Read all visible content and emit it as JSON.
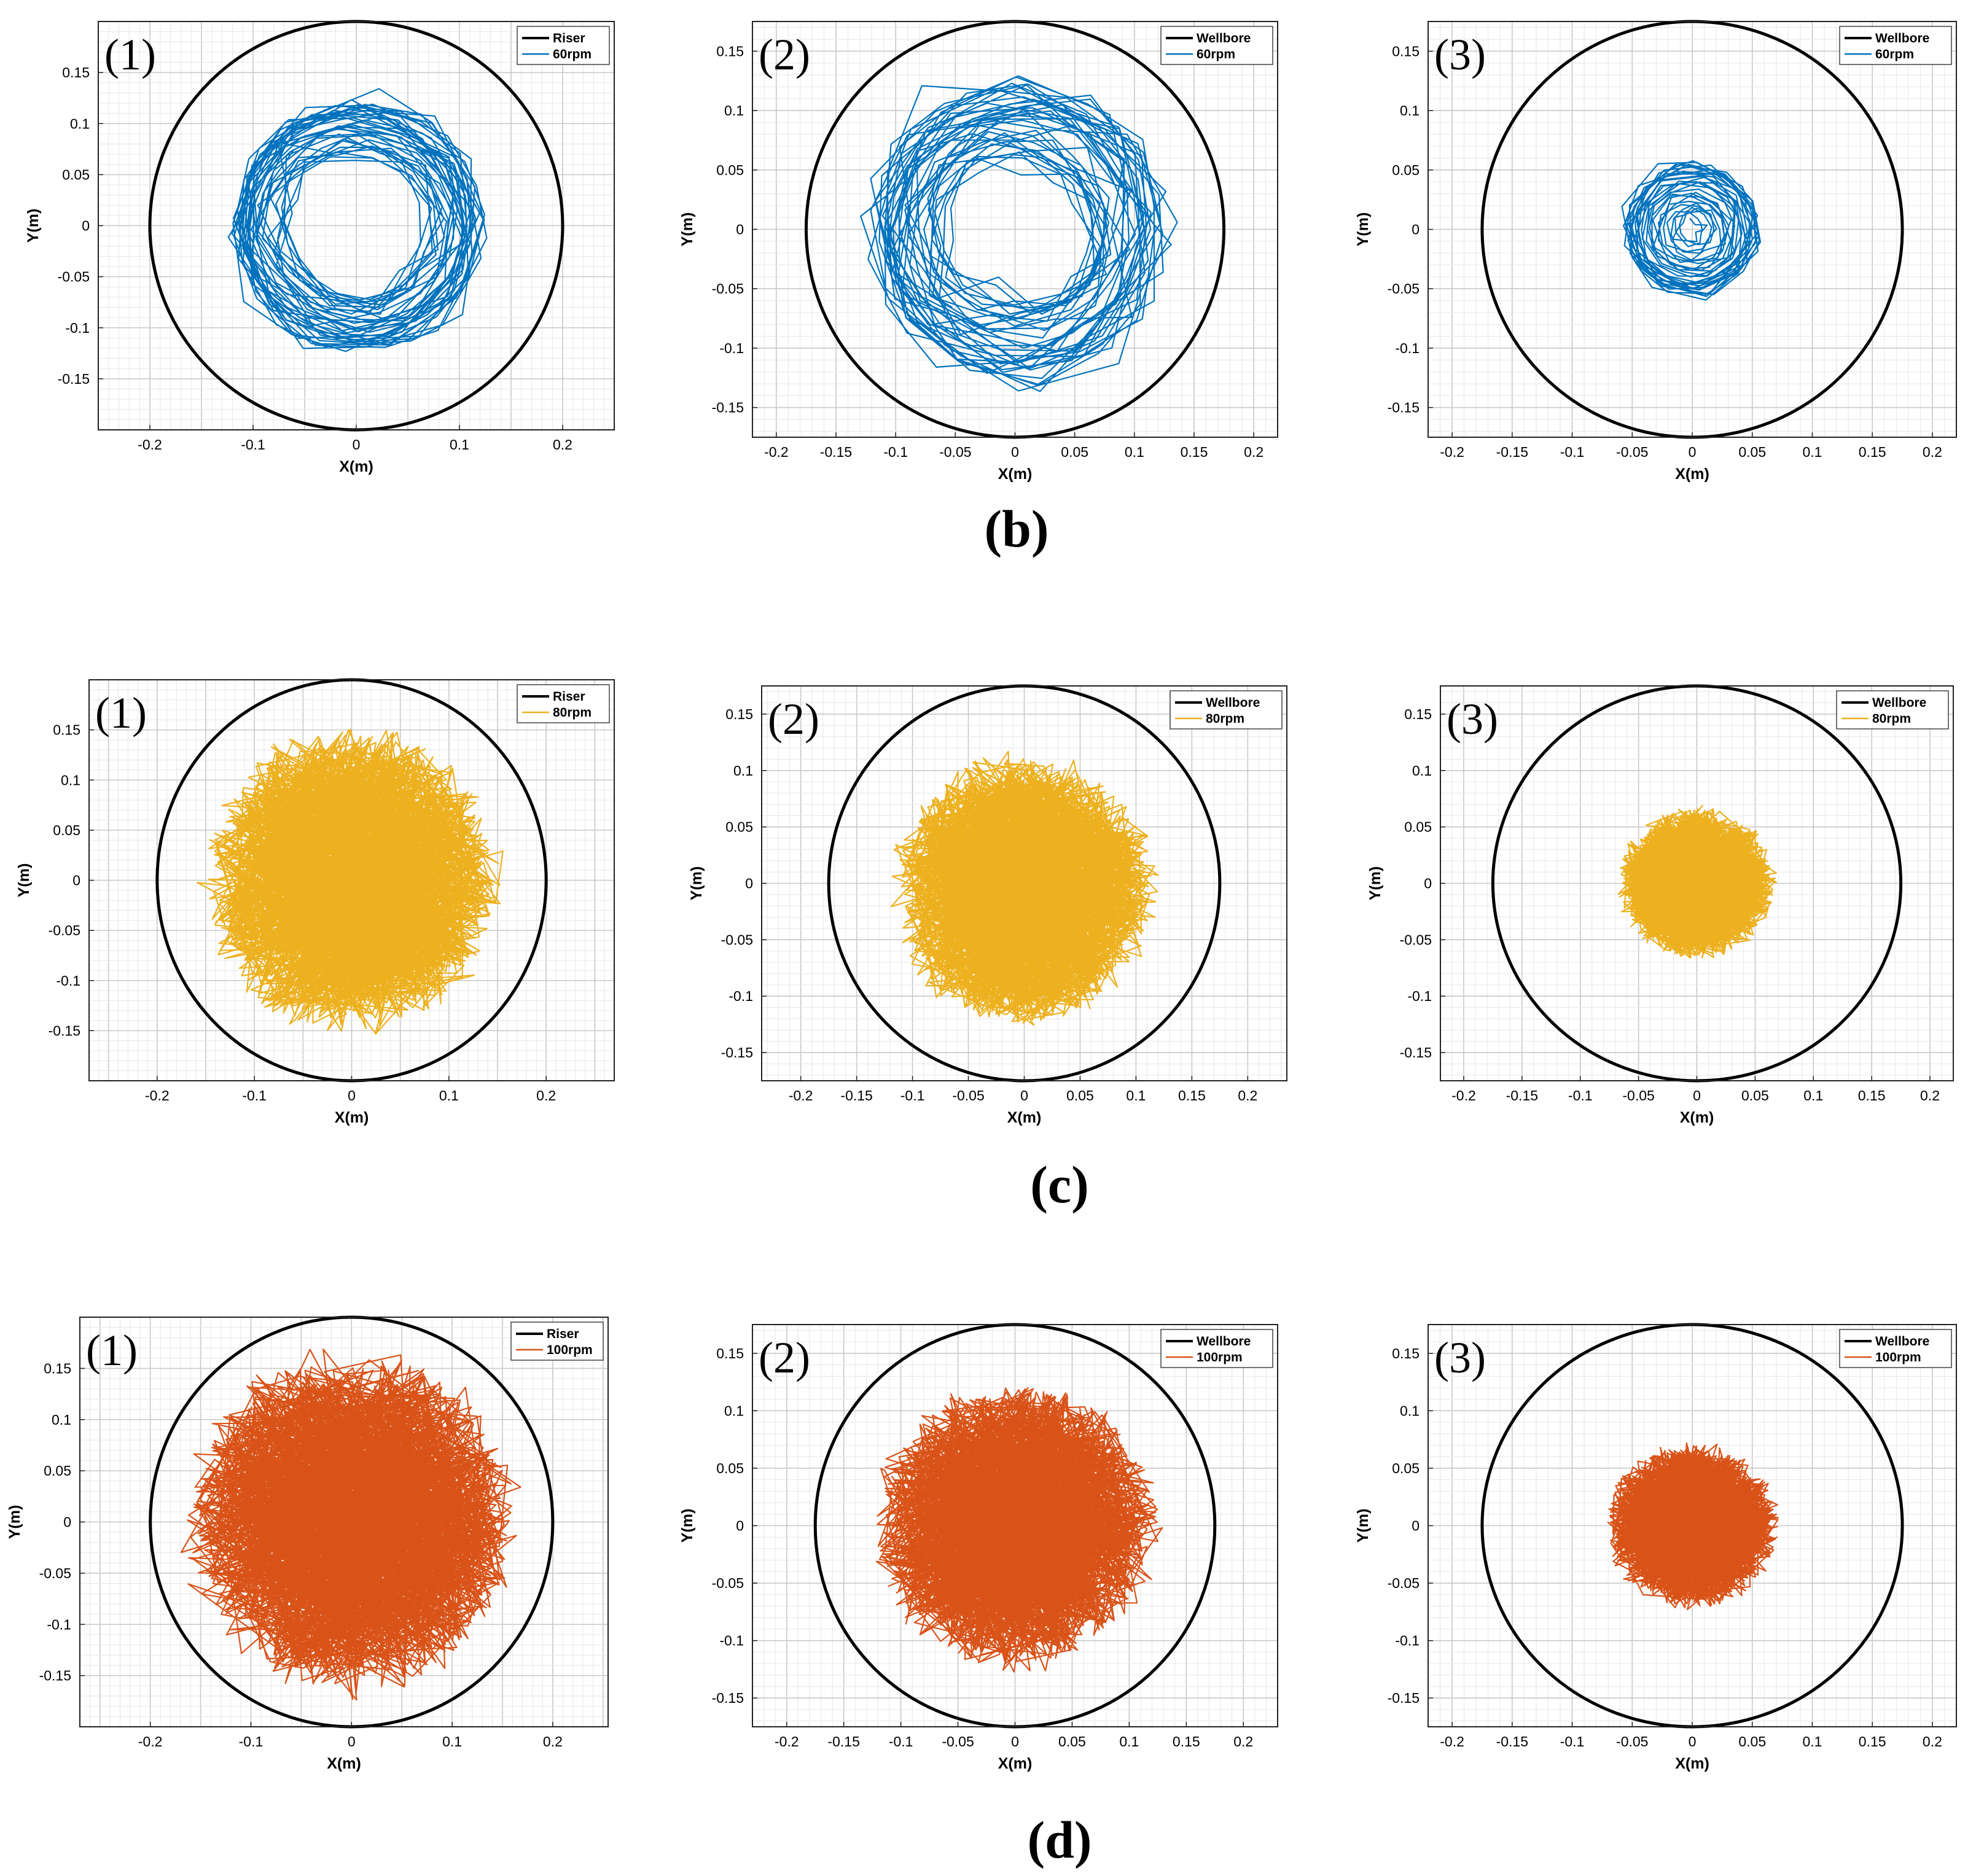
{
  "figure": {
    "row_labels": [
      "(b)",
      "(c)",
      "(d)"
    ]
  },
  "colors": {
    "60rpm": "#0072BD",
    "80rpm": "#EDB120",
    "100rpm": "#D95319",
    "boundary": "#000000"
  },
  "chart_data": [
    {
      "type": "line",
      "panel": "(1)",
      "row": "(b)",
      "xlabel": "X(m)",
      "ylabel": "Y(m)",
      "xlim": [
        -0.25,
        0.25
      ],
      "ylim": [
        -0.2,
        0.2
      ],
      "xticks": [
        "-0.2",
        "-0.1",
        "0",
        "0.1",
        "0.2"
      ],
      "yticks": [
        "-0.15",
        "-0.1",
        "-0.05",
        "0",
        "0.05",
        "0.1",
        "0.15"
      ],
      "grid": "minor",
      "legend": {
        "position": "top-right",
        "entries": [
          "Riser",
          "60rpm"
        ]
      },
      "series": [
        {
          "name": "Riser",
          "shape": "circle",
          "radius": 0.2
        },
        {
          "name": "60rpm",
          "pattern": "ring",
          "center": [
            0.0,
            0.0
          ],
          "rmin": 0.07,
          "rmax": 0.12,
          "spread": 0.02,
          "color": "60rpm"
        }
      ]
    },
    {
      "type": "line",
      "panel": "(2)",
      "row": "(b)",
      "xlabel": "X(m)",
      "ylabel": "Y(m)",
      "xlim": [
        -0.22,
        0.22
      ],
      "ylim": [
        -0.175,
        0.175
      ],
      "xticks": [
        "-0.2",
        "-0.15",
        "-0.1",
        "-0.05",
        "0",
        "0.05",
        "0.1",
        "0.15",
        "0.2"
      ],
      "yticks": [
        "-0.15",
        "-0.1",
        "-0.05",
        "0",
        "0.05",
        "0.1",
        "0.15"
      ],
      "grid": "minor",
      "legend": {
        "position": "top-right",
        "entries": [
          "Wellbore",
          "60rpm"
        ]
      },
      "series": [
        {
          "name": "Wellbore",
          "shape": "circle",
          "radius": 0.175
        },
        {
          "name": "60rpm",
          "pattern": "ring",
          "center": [
            0.0,
            0.0
          ],
          "rmin": 0.06,
          "rmax": 0.12,
          "spread": 0.03,
          "color": "60rpm"
        }
      ]
    },
    {
      "type": "line",
      "panel": "(3)",
      "row": "(b)",
      "xlabel": "X(m)",
      "ylabel": "Y(m)",
      "xlim": [
        -0.22,
        0.22
      ],
      "ylim": [
        -0.175,
        0.175
      ],
      "xticks": [
        "-0.2",
        "-0.15",
        "-0.1",
        "-0.05",
        "0",
        "0.05",
        "0.1",
        "0.15",
        "0.2"
      ],
      "yticks": [
        "-0.15",
        "-0.1",
        "-0.05",
        "0",
        "0.05",
        "0.1",
        "0.15"
      ],
      "grid": "minor",
      "legend": {
        "position": "top-right",
        "entries": [
          "Wellbore",
          "60rpm"
        ]
      },
      "series": [
        {
          "name": "Wellbore",
          "shape": "circle",
          "radius": 0.175
        },
        {
          "name": "60rpm",
          "pattern": "spiral",
          "center": [
            0.0,
            0.0
          ],
          "rmin": 0.0,
          "rmax": 0.055,
          "spread": 0.01,
          "color": "60rpm"
        }
      ]
    },
    {
      "type": "line",
      "panel": "(1)",
      "row": "(c)",
      "xlabel": "X(m)",
      "ylabel": "Y(m)",
      "xlim": [
        -0.27,
        0.27
      ],
      "ylim": [
        -0.2,
        0.2
      ],
      "xticks": [
        "-0.2",
        "-0.1",
        "0",
        "0.1",
        "0.2"
      ],
      "yticks": [
        "-0.15",
        "-0.1",
        "-0.05",
        "0",
        "0.05",
        "0.1",
        "0.15"
      ],
      "grid": "minor",
      "legend": {
        "position": "top-right",
        "entries": [
          "Riser",
          "80rpm"
        ]
      },
      "series": [
        {
          "name": "Riser",
          "shape": "circle",
          "radius": 0.2
        },
        {
          "name": "80rpm",
          "pattern": "cloud",
          "center": [
            0.0,
            0.0
          ],
          "rmin": 0.0,
          "rmax": 0.16,
          "spread": 0.05,
          "color": "80rpm"
        }
      ]
    },
    {
      "type": "line",
      "panel": "(2)",
      "row": "(c)",
      "xlabel": "X(m)",
      "ylabel": "Y(m)",
      "xlim": [
        -0.235,
        0.235
      ],
      "ylim": [
        -0.175,
        0.175
      ],
      "xticks": [
        "-0.2",
        "-0.15",
        "-0.1",
        "-0.05",
        "0",
        "0.05",
        "0.1",
        "0.15",
        "0.2"
      ],
      "yticks": [
        "-0.15",
        "-0.1",
        "-0.05",
        "0",
        "0.05",
        "0.1",
        "0.15"
      ],
      "grid": "minor",
      "legend": {
        "position": "top-right",
        "entries": [
          "Wellbore",
          "80rpm"
        ]
      },
      "series": [
        {
          "name": "Wellbore",
          "shape": "circle",
          "radius": 0.175
        },
        {
          "name": "80rpm",
          "pattern": "cloud",
          "center": [
            0.0,
            -0.005
          ],
          "rmin": 0.0,
          "rmax": 0.125,
          "spread": 0.03,
          "color": "80rpm"
        }
      ]
    },
    {
      "type": "line",
      "panel": "(3)",
      "row": "(c)",
      "xlabel": "X(m)",
      "ylabel": "Y(m)",
      "xlim": [
        -0.22,
        0.22
      ],
      "ylim": [
        -0.175,
        0.175
      ],
      "xticks": [
        "-0.2",
        "-0.15",
        "-0.1",
        "-0.05",
        "0",
        "0.05",
        "0.1",
        "0.15",
        "0.2"
      ],
      "yticks": [
        "-0.15",
        "-0.1",
        "-0.05",
        "0",
        "0.05",
        "0.1",
        "0.15"
      ],
      "grid": "minor",
      "legend": {
        "position": "top-right",
        "entries": [
          "Wellbore",
          "80rpm"
        ]
      },
      "series": [
        {
          "name": "Wellbore",
          "shape": "circle",
          "radius": 0.175
        },
        {
          "name": "80rpm",
          "pattern": "cloud",
          "center": [
            0.0,
            0.0
          ],
          "rmin": 0.0,
          "rmax": 0.07,
          "spread": 0.012,
          "color": "80rpm"
        }
      ]
    },
    {
      "type": "line",
      "panel": "(1)",
      "row": "(d)",
      "xlabel": "X(m)",
      "ylabel": "Y(m)",
      "xlim": [
        -0.27,
        0.255
      ],
      "ylim": [
        -0.2,
        0.2
      ],
      "xticks": [
        "-0.2",
        "-0.1",
        "0",
        "0.1",
        "0.2"
      ],
      "yticks": [
        "-0.15",
        "-0.1",
        "-0.05",
        "0",
        "0.05",
        "0.1",
        "0.15"
      ],
      "grid": "minor",
      "legend": {
        "position": "top-right",
        "entries": [
          "Riser",
          "100rpm"
        ]
      },
      "series": [
        {
          "name": "Riser",
          "shape": "circle",
          "radius": 0.2
        },
        {
          "name": "100rpm",
          "pattern": "cloud",
          "center": [
            0.0,
            0.0
          ],
          "rmin": 0.0,
          "rmax": 0.175,
          "spread": 0.06,
          "color": "100rpm"
        }
      ]
    },
    {
      "type": "line",
      "panel": "(2)",
      "row": "(d)",
      "xlabel": "X(m)",
      "ylabel": "Y(m)",
      "xlim": [
        -0.23,
        0.23
      ],
      "ylim": [
        -0.175,
        0.175
      ],
      "xticks": [
        "-0.2",
        "-0.15",
        "-0.1",
        "-0.05",
        "0",
        "0.05",
        "0.1",
        "0.15",
        "0.2"
      ],
      "yticks": [
        "-0.15",
        "-0.1",
        "-0.05",
        "0",
        "0.05",
        "0.1",
        "0.15"
      ],
      "grid": "minor",
      "legend": {
        "position": "top-right",
        "entries": [
          "Wellbore",
          "100rpm"
        ]
      },
      "series": [
        {
          "name": "Wellbore",
          "shape": "circle",
          "radius": 0.175
        },
        {
          "name": "100rpm",
          "pattern": "cloud",
          "center": [
            0.0,
            0.0
          ],
          "rmin": 0.0,
          "rmax": 0.13,
          "spread": 0.035,
          "color": "100rpm"
        }
      ]
    },
    {
      "type": "line",
      "panel": "(3)",
      "row": "(d)",
      "xlabel": "X(m)",
      "ylabel": "Y(m)",
      "xlim": [
        -0.22,
        0.22
      ],
      "ylim": [
        -0.175,
        0.175
      ],
      "xticks": [
        "-0.2",
        "-0.15",
        "-0.1",
        "-0.05",
        "0",
        "0.05",
        "0.1",
        "0.15",
        "0.2"
      ],
      "yticks": [
        "-0.15",
        "-0.1",
        "-0.05",
        "0",
        "0.05",
        "0.1",
        "0.15"
      ],
      "grid": "minor",
      "legend": {
        "position": "top-right",
        "entries": [
          "Wellbore",
          "100rpm"
        ]
      },
      "series": [
        {
          "name": "Wellbore",
          "shape": "circle",
          "radius": 0.175
        },
        {
          "name": "100rpm",
          "pattern": "cloud",
          "center": [
            0.0,
            0.0
          ],
          "rmin": 0.0,
          "rmax": 0.075,
          "spread": 0.015,
          "color": "100rpm"
        }
      ]
    }
  ]
}
